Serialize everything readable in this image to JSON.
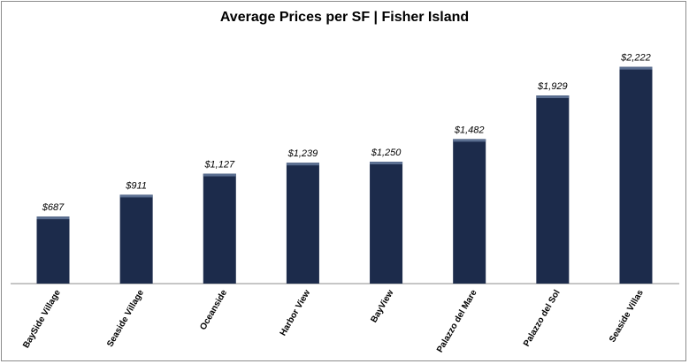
{
  "chart_data": {
    "type": "bar",
    "title": "Average Prices per SF | Fisher Island",
    "xlabel": "",
    "ylabel": "",
    "categories": [
      "BaySide Village",
      "Seaside Village",
      "Oceanside",
      "Harbor View",
      "BayView",
      "Palazzo del Mare",
      "Palazzo del Sol",
      "Seaside Villas"
    ],
    "values": [
      687,
      911,
      1127,
      1239,
      1250,
      1482,
      1929,
      2222
    ],
    "value_labels": [
      "$687",
      "$911",
      "$1,127",
      "$1,239",
      "$1,250",
      "$1,482",
      "$1,929",
      "$2,222"
    ],
    "ylim": [
      0,
      2500
    ],
    "grid": false,
    "legend": "none",
    "colors": {
      "bar": "#1c2b4b",
      "bar_top": "#5b6f91",
      "axis": "#8c8c8c"
    }
  }
}
